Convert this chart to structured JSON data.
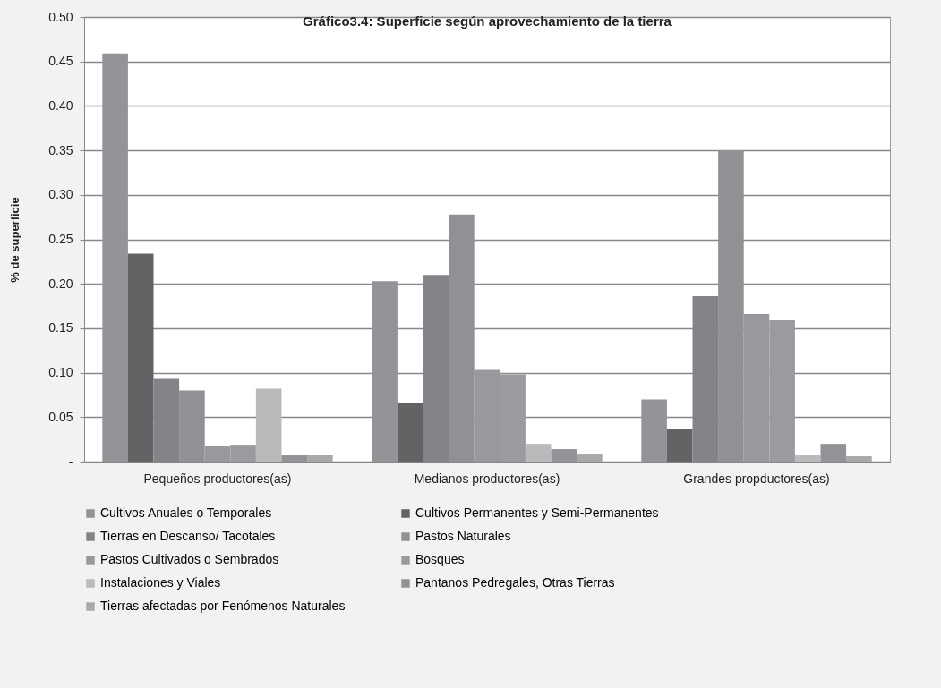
{
  "chart_data": {
    "type": "bar",
    "title": "Gráfico3.4:    Superficie según aprovechamiento de la tierra",
    "ylabel": "% de superficie",
    "categories": [
      "Pequeños productores(as)",
      "Medianos productores(as)",
      "Grandes propductores(as)"
    ],
    "series": [
      {
        "name": "Cultivos Anuales o Temporales",
        "color": "#939497",
        "values": [
          0.459,
          0.203,
          0.07
        ]
      },
      {
        "name": "Cultivos Permanentes y Semi-Permanentes",
        "color": "#636365",
        "values": [
          0.234,
          0.066,
          0.037
        ]
      },
      {
        "name": "Tierras en Descanso/ Tacotales",
        "color": "#838487",
        "values": [
          0.093,
          0.21,
          0.186
        ]
      },
      {
        "name": "Pastos Naturales",
        "color": "#909194",
        "values": [
          0.08,
          0.278,
          0.35
        ]
      },
      {
        "name": "Pastos Cultivados o Sembrados",
        "color": "#98999c",
        "values": [
          0.018,
          0.103,
          0.166
        ]
      },
      {
        "name": "Bosques",
        "color": "#9a9b9e",
        "values": [
          0.019,
          0.098,
          0.159
        ]
      },
      {
        "name": "Instalaciones  y Viales",
        "color": "#b9babc",
        "values": [
          0.082,
          0.02,
          0.007
        ]
      },
      {
        "name": "Pantanos Pedregales, Otras Tierras",
        "color": "#929396",
        "values": [
          0.007,
          0.014,
          0.02
        ]
      },
      {
        "name": "Tierras afectadas por Fenómenos Naturales",
        "color": "#a8a9ab",
        "values": [
          0.007,
          0.008,
          0.006
        ]
      }
    ],
    "ylim": [
      0,
      0.5
    ],
    "yticks": [
      {
        "value": 0,
        "label": "-"
      },
      {
        "value": 0.05,
        "label": "0.05"
      },
      {
        "value": 0.1,
        "label": "0.10"
      },
      {
        "value": 0.15,
        "label": "0.15"
      },
      {
        "value": 0.2,
        "label": "0.20"
      },
      {
        "value": 0.25,
        "label": "0.25"
      },
      {
        "value": 0.3,
        "label": "0.30"
      },
      {
        "value": 0.35,
        "label": "0.35"
      },
      {
        "value": 0.4,
        "label": "0.40"
      },
      {
        "value": 0.45,
        "label": "0.45"
      },
      {
        "value": 0.5,
        "label": "0.50"
      }
    ],
    "grid": "y",
    "legend": "bottom"
  }
}
